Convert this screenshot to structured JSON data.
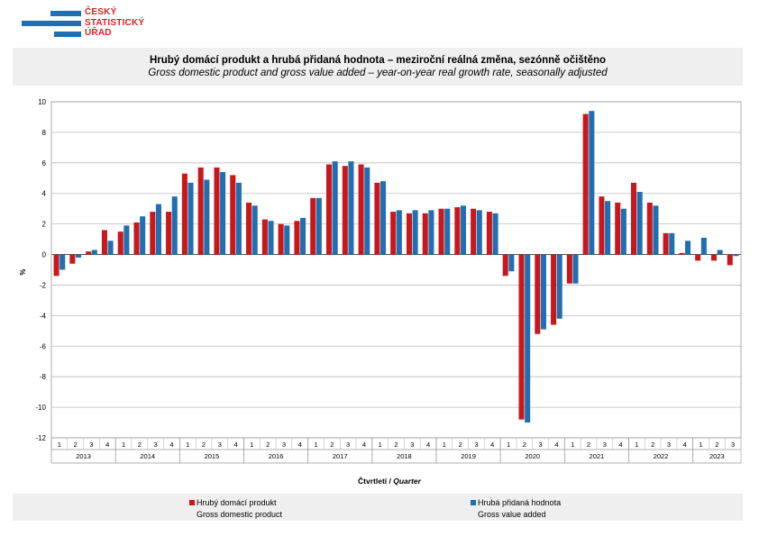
{
  "logo": {
    "line1": "ČESKÝ",
    "line2": "STATISTICKÝ",
    "line3": "ÚŘAD"
  },
  "chart_data": {
    "type": "bar",
    "title": "Hrubý domácí produkt a hrubá přidaná hodnota – meziroční reálná změna, sezónně očištěno",
    "subtitle": "Gross domestic product and gross value added – year-on-year real growth rate, seasonally adjusted",
    "ylabel": "%",
    "xlabel_cz": "Čtvrtletí / ",
    "xlabel_en": "Quarter",
    "ylim": [
      -12,
      10
    ],
    "yticks": [
      10,
      8,
      6,
      4,
      2,
      0,
      -2,
      -4,
      -6,
      -8,
      -10,
      -12
    ],
    "grid": true,
    "legend_position": "bottom",
    "years": [
      "2013",
      "2014",
      "2015",
      "2016",
      "2017",
      "2018",
      "2019",
      "2020",
      "2021",
      "2022",
      "2023"
    ],
    "quarters": [
      "1",
      "2",
      "3",
      "4",
      "1",
      "2",
      "3",
      "4",
      "1",
      "2",
      "3",
      "4",
      "1",
      "2",
      "3",
      "4",
      "1",
      "2",
      "3",
      "4",
      "1",
      "2",
      "3",
      "4",
      "1",
      "2",
      "3",
      "4",
      "1",
      "2",
      "3",
      "4",
      "1",
      "2",
      "3",
      "4",
      "1",
      "2",
      "3",
      "4",
      "1",
      "2",
      "3"
    ],
    "series": [
      {
        "name": "Hrubý domácí produkt",
        "name_en": "Gross domestic product",
        "color": "#c8181c",
        "values": [
          -1.4,
          -0.6,
          0.2,
          1.6,
          1.5,
          2.1,
          2.8,
          2.8,
          5.3,
          5.7,
          5.7,
          5.2,
          3.4,
          2.3,
          2.0,
          2.2,
          3.7,
          5.9,
          5.8,
          5.9,
          4.7,
          2.8,
          2.7,
          2.7,
          3.0,
          3.1,
          3.0,
          2.8,
          -1.4,
          -10.8,
          -5.2,
          -4.6,
          -1.9,
          9.2,
          3.8,
          3.4,
          4.7,
          3.4,
          1.4,
          0.1,
          -0.4,
          -0.4,
          -0.7
        ]
      },
      {
        "name": "Hrubá přidaná hodnota",
        "name_en": "Gross value added",
        "color": "#1f6fb2",
        "values": [
          -1.0,
          -0.2,
          0.3,
          0.9,
          1.9,
          2.5,
          3.3,
          3.8,
          4.7,
          4.9,
          5.4,
          4.7,
          3.2,
          2.2,
          1.9,
          2.4,
          3.7,
          6.1,
          6.1,
          5.7,
          4.8,
          2.9,
          2.9,
          2.9,
          3.0,
          3.2,
          2.9,
          2.7,
          -1.1,
          -11.0,
          -4.9,
          -4.2,
          -1.9,
          9.4,
          3.5,
          3.0,
          4.1,
          3.2,
          1.4,
          0.9,
          1.1,
          0.3,
          -0.1
        ]
      }
    ]
  }
}
